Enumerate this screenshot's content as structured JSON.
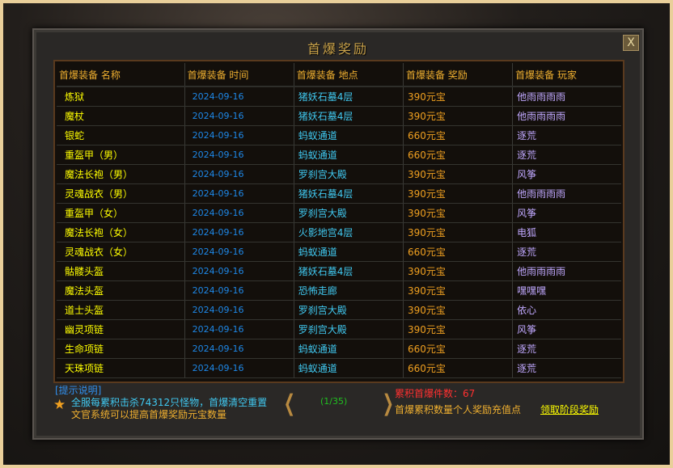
{
  "window": {
    "title": "首爆奖励",
    "close_label": "X"
  },
  "table": {
    "headers": [
      "首爆装备 名称",
      "首爆装备 时间",
      "首爆装备 地点",
      "首爆装备 奖励",
      "首爆装备 玩家"
    ],
    "rows": [
      [
        "炼狱",
        "2024-09-16",
        "猪妖石墓4层",
        "390元宝",
        "他雨雨雨雨"
      ],
      [
        "魔杖",
        "2024-09-16",
        "猪妖石墓4层",
        "390元宝",
        "他雨雨雨雨"
      ],
      [
        "银蛇",
        "2024-09-16",
        "蚂蚁通道",
        "660元宝",
        "逐荒"
      ],
      [
        "重盔甲（男）",
        "2024-09-16",
        "蚂蚁通道",
        "660元宝",
        "逐荒"
      ],
      [
        "魔法长袍（男）",
        "2024-09-16",
        "罗刹宫大殿",
        "390元宝",
        "风筝"
      ],
      [
        "灵魂战衣（男）",
        "2024-09-16",
        "猪妖石墓4层",
        "390元宝",
        "他雨雨雨雨"
      ],
      [
        "重盔甲（女）",
        "2024-09-16",
        "罗刹宫大殿",
        "390元宝",
        "风筝"
      ],
      [
        "魔法长袍（女）",
        "2024-09-16",
        "火影地宫4层",
        "390元宝",
        "电狐"
      ],
      [
        "灵魂战衣（女）",
        "2024-09-16",
        "蚂蚁通道",
        "660元宝",
        "逐荒"
      ],
      [
        "骷髅头盔",
        "2024-09-16",
        "猪妖石墓4层",
        "390元宝",
        "他雨雨雨雨"
      ],
      [
        "魔法头盔",
        "2024-09-16",
        "恐怖走廊",
        "390元宝",
        "嘿嘿嘿"
      ],
      [
        "道士头盔",
        "2024-09-16",
        "罗刹宫大殿",
        "390元宝",
        "依心"
      ],
      [
        "幽灵项链",
        "2024-09-16",
        "罗刹宫大殿",
        "390元宝",
        "风筝"
      ],
      [
        "生命项链",
        "2024-09-16",
        "蚂蚁通道",
        "660元宝",
        "逐荒"
      ],
      [
        "天珠项链",
        "2024-09-16",
        "蚂蚁通道",
        "660元宝",
        "逐荒"
      ]
    ]
  },
  "footer": {
    "tip_title": "[提示说明]",
    "tip_line1": "全服每累积击杀74312只怪物，首爆清空重置",
    "tip_line2": "文官系统可以提高首爆奖励元宝数量",
    "prev_icon": "chevron-left-icon",
    "next_icon": "chevron-right-icon",
    "page": "(1/35)",
    "count_label": "累积首爆件数：",
    "count_value": "67",
    "desc": "首爆累积数量个人奖励充值点",
    "claim_label": "领取阶段奖励"
  }
}
